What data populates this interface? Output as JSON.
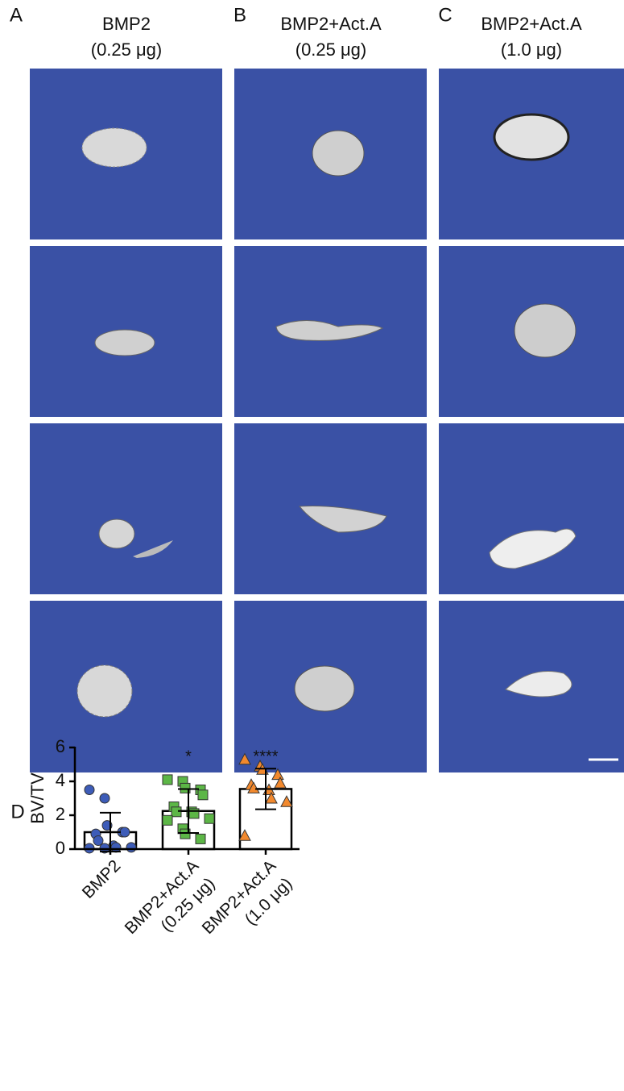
{
  "figure": {
    "columns": [
      {
        "label": "A",
        "title": "BMP2",
        "dose": "(0.25 μg)"
      },
      {
        "label": "B",
        "title": "BMP2+Act.A",
        "dose": "(0.25 μg)"
      },
      {
        "label": "C",
        "title": "BMP2+Act.A",
        "dose": "(1.0 μg)"
      }
    ]
  },
  "chart_data": {
    "type": "bar",
    "panel_label": "D",
    "ylabel": "BV/TV",
    "categories": [
      "BMP2",
      "BMP2+Act.A",
      "BMP2+Act.A"
    ],
    "category_doses": [
      null,
      "(0.25 μg)",
      "(1.0 μg)"
    ],
    "values": [
      1.0,
      2.25,
      3.55
    ],
    "errors": [
      1.15,
      1.3,
      1.2
    ],
    "significance": [
      null,
      "*",
      "****"
    ],
    "points": [
      [
        3.5,
        3.0,
        1.4,
        1.0,
        1.0,
        0.9,
        0.5,
        0.2,
        0.1,
        0.1,
        0.05,
        0.05
      ],
      [
        4.1,
        4.0,
        3.6,
        3.5,
        3.2,
        2.5,
        2.2,
        2.2,
        2.1,
        1.8,
        1.7,
        1.2,
        0.9,
        0.6
      ],
      [
        5.3,
        4.9,
        4.7,
        4.4,
        3.9,
        3.8,
        3.6,
        3.5,
        3.0,
        2.8,
        0.8
      ]
    ],
    "colors": [
      "#3d5cb8",
      "#5cb646",
      "#f2892e"
    ],
    "markers": [
      "circle",
      "square",
      "triangle"
    ],
    "ylim": [
      0,
      6
    ],
    "yticks": [
      0,
      2,
      4,
      6
    ]
  }
}
